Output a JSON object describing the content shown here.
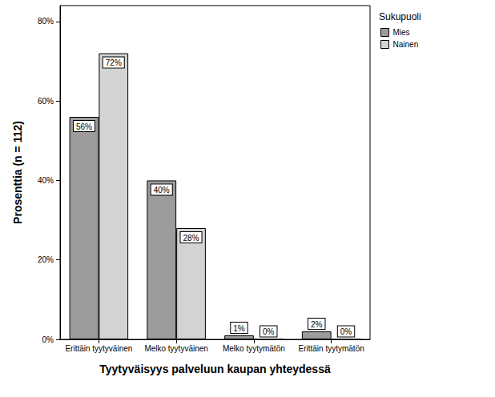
{
  "chart_data": {
    "type": "bar",
    "x_label": "Tyytyväisyys palveluun kaupan yhteydessä",
    "y_label": "Prosenttia (n = 112)",
    "legend_title": "Sukupuoli",
    "categories": [
      "Erittäin tyytyväinen",
      "Melko tyytyväinen",
      "Melko tyytymätön",
      "Erittäin tyytymätön"
    ],
    "series": [
      {
        "name": "Mies",
        "color": "#9c9c9c",
        "values": [
          56,
          40,
          1,
          2
        ],
        "value_labels": [
          "56%",
          "40%",
          "1%",
          "2%"
        ]
      },
      {
        "name": "Nainen",
        "color": "#d3d3d3",
        "values": [
          72,
          28,
          0,
          0
        ],
        "value_labels": [
          "72%",
          "28%",
          "0%",
          "0%"
        ]
      }
    ],
    "ylim": [
      0,
      84
    ],
    "yticks": [
      {
        "value": 0,
        "label": "0%"
      },
      {
        "value": 20,
        "label": "20%"
      },
      {
        "value": 40,
        "label": "40%"
      },
      {
        "value": 60,
        "label": "60%"
      },
      {
        "value": 80,
        "label": "80%"
      }
    ],
    "grid": false,
    "legend": "upper right",
    "data_labels": true
  }
}
